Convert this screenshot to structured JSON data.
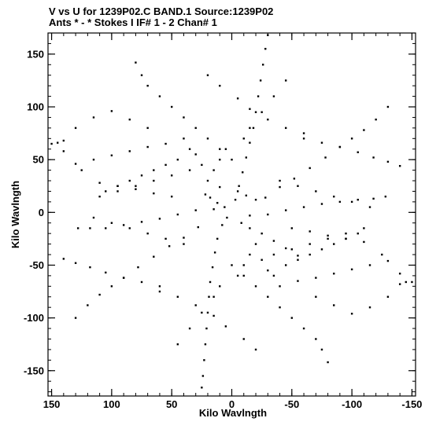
{
  "chart_data": {
    "type": "scatter",
    "title_line1": "V vs U for 1239P02.C BAND.1   Source:1239P02",
    "title_line2": "Ants * - *    Stokes I  IF# 1 - 2  Chan# 1",
    "xlabel": "Kilo Wavlngth",
    "ylabel": "Kilo Wavlngth",
    "xlim": [
      153,
      -153
    ],
    "ylim": [
      -174,
      170
    ],
    "x_ticks": [
      150,
      100,
      50,
      0,
      -50,
      -100,
      -150
    ],
    "y_ticks": [
      150,
      100,
      50,
      0,
      -50,
      -100,
      -150
    ],
    "x_minor_step": 10,
    "y_minor_step": 10,
    "grid": false,
    "point_color": "#000000",
    "description_hint": "six-armed star uv-coverage pattern, point-symmetric about origin",
    "series": [
      {
        "points": [
          [
            6,
            5
          ],
          [
            12,
            9
          ],
          [
            18,
            14
          ],
          [
            22,
            17
          ],
          [
            10,
            24
          ],
          [
            -5,
            20
          ],
          [
            -12,
            16
          ],
          [
            -20,
            12
          ],
          [
            4,
            -5
          ],
          [
            -8,
            -10
          ],
          [
            -15,
            -15
          ],
          [
            -25,
            -20
          ],
          [
            -35,
            -27
          ],
          [
            -45,
            -34
          ],
          [
            -55,
            -41
          ],
          [
            8,
            -12
          ],
          [
            12,
            -25
          ],
          [
            14,
            -38
          ],
          [
            16,
            -52
          ],
          [
            18,
            -66
          ],
          [
            19,
            -80
          ],
          [
            20,
            -95
          ],
          [
            21,
            -110
          ],
          [
            22,
            -125
          ],
          [
            23,
            -140
          ],
          [
            24,
            -155
          ],
          [
            25,
            -166
          ],
          [
            -3,
            12
          ],
          [
            -6,
            25
          ],
          [
            -9,
            38
          ],
          [
            -12,
            52
          ],
          [
            -15,
            66
          ],
          [
            -18,
            80
          ],
          [
            -20,
            95
          ],
          [
            -22,
            110
          ],
          [
            -24,
            125
          ],
          [
            -26,
            140
          ],
          [
            -28,
            155
          ],
          [
            -30,
            168
          ],
          [
            15,
            3
          ],
          [
            30,
            2
          ],
          [
            45,
            -2
          ],
          [
            60,
            -6
          ],
          [
            75,
            -9
          ],
          [
            90,
            -12
          ],
          [
            105,
            -15
          ],
          [
            118,
            -15
          ],
          [
            128,
            -15
          ],
          [
            -15,
            -3
          ],
          [
            -30,
            -2
          ],
          [
            -45,
            2
          ],
          [
            -60,
            5
          ],
          [
            -75,
            8
          ],
          [
            -90,
            10
          ],
          [
            -105,
            12
          ],
          [
            -118,
            13
          ],
          [
            -128,
            15
          ],
          [
            40,
            70
          ],
          [
            55,
            65
          ],
          [
            70,
            62
          ],
          [
            85,
            58
          ],
          [
            100,
            54
          ],
          [
            115,
            50
          ],
          [
            130,
            46
          ],
          [
            145,
            66
          ],
          [
            140,
            58
          ],
          [
            125,
            40
          ],
          [
            -40,
            -70
          ],
          [
            -55,
            -65
          ],
          [
            -70,
            -62
          ],
          [
            -85,
            -58
          ],
          [
            -100,
            -54
          ],
          [
            -115,
            -50
          ],
          [
            -130,
            -46
          ],
          [
            -145,
            -66
          ],
          [
            -140,
            -58
          ],
          [
            -125,
            -40
          ],
          [
            -60,
            70
          ],
          [
            -75,
            66
          ],
          [
            -90,
            62
          ],
          [
            -105,
            57
          ],
          [
            -118,
            52
          ],
          [
            -130,
            48
          ],
          [
            -140,
            44
          ],
          [
            60,
            -70
          ],
          [
            75,
            -66
          ],
          [
            90,
            -62
          ],
          [
            105,
            -57
          ],
          [
            118,
            -52
          ],
          [
            130,
            -48
          ],
          [
            140,
            -44
          ],
          [
            130,
            -100
          ],
          [
            120,
            -88
          ],
          [
            110,
            -78
          ],
          [
            100,
            -70
          ],
          [
            90,
            -62
          ],
          [
            78,
            -52
          ],
          [
            65,
            -42
          ],
          [
            52,
            -32
          ],
          [
            40,
            -24
          ],
          [
            28,
            -14
          ],
          [
            -130,
            100
          ],
          [
            -120,
            88
          ],
          [
            -110,
            78
          ],
          [
            -100,
            70
          ],
          [
            -90,
            62
          ],
          [
            -78,
            52
          ],
          [
            -65,
            42
          ],
          [
            -52,
            32
          ],
          [
            -40,
            24
          ],
          [
            -28,
            14
          ],
          [
            -140,
            -68
          ],
          [
            -150,
            -66
          ],
          [
            -130,
            -80
          ],
          [
            -115,
            -90
          ],
          [
            -100,
            -96
          ],
          [
            -85,
            -88
          ],
          [
            -70,
            -80
          ],
          [
            140,
            68
          ],
          [
            150,
            65
          ],
          [
            130,
            80
          ],
          [
            115,
            90
          ],
          [
            100,
            96
          ],
          [
            85,
            88
          ],
          [
            70,
            80
          ],
          [
            0,
            50
          ],
          [
            10,
            60
          ],
          [
            20,
            70
          ],
          [
            30,
            80
          ],
          [
            40,
            90
          ],
          [
            50,
            100
          ],
          [
            60,
            110
          ],
          [
            70,
            120
          ],
          [
            75,
            130
          ],
          [
            80,
            142
          ],
          [
            0,
            -50
          ],
          [
            -10,
            -60
          ],
          [
            -20,
            -70
          ],
          [
            -30,
            -80
          ],
          [
            -40,
            -90
          ],
          [
            -50,
            -100
          ],
          [
            -60,
            -110
          ],
          [
            -70,
            -120
          ],
          [
            -75,
            -130
          ],
          [
            -80,
            -142
          ],
          [
            20,
            130
          ],
          [
            10,
            120
          ],
          [
            -5,
            108
          ],
          [
            -15,
            98
          ],
          [
            -30,
            88
          ],
          [
            -45,
            80
          ],
          [
            -60,
            75
          ],
          [
            -20,
            -130
          ],
          [
            -10,
            -120
          ],
          [
            5,
            -108
          ],
          [
            15,
            -98
          ],
          [
            30,
            -88
          ],
          [
            45,
            -80
          ],
          [
            60,
            -75
          ],
          [
            35,
            40
          ],
          [
            50,
            35
          ],
          [
            65,
            30
          ],
          [
            80,
            25
          ],
          [
            95,
            20
          ],
          [
            110,
            15
          ],
          [
            -35,
            -40
          ],
          [
            -50,
            -35
          ],
          [
            -65,
            -30
          ],
          [
            -80,
            -25
          ],
          [
            -95,
            -20
          ],
          [
            -110,
            -15
          ],
          [
            25,
            45
          ],
          [
            30,
            55
          ],
          [
            35,
            60
          ],
          [
            45,
            50
          ],
          [
            55,
            45
          ],
          [
            65,
            40
          ],
          [
            75,
            35
          ],
          [
            85,
            30
          ],
          [
            95,
            25
          ],
          [
            105,
            20
          ],
          [
            -25,
            -45
          ],
          [
            -30,
            -55
          ],
          [
            -35,
            -60
          ],
          [
            -45,
            -50
          ],
          [
            -55,
            -45
          ],
          [
            -65,
            -40
          ],
          [
            -75,
            -35
          ],
          [
            -85,
            -30
          ],
          [
            -95,
            -25
          ],
          [
            -105,
            -20
          ],
          [
            -40,
            30
          ],
          [
            -55,
            25
          ],
          [
            -70,
            20
          ],
          [
            -85,
            15
          ],
          [
            -100,
            10
          ],
          [
            -115,
            5
          ],
          [
            40,
            -30
          ],
          [
            55,
            -25
          ],
          [
            70,
            -20
          ],
          [
            85,
            -15
          ],
          [
            100,
            -10
          ],
          [
            115,
            -5
          ],
          [
            -10,
            70
          ],
          [
            -15,
            80
          ],
          [
            -25,
            95
          ],
          [
            -35,
            110
          ],
          [
            -45,
            125
          ],
          [
            10,
            -70
          ],
          [
            15,
            -80
          ],
          [
            25,
            -95
          ],
          [
            35,
            -110
          ],
          [
            45,
            -125
          ],
          [
            20,
            30
          ],
          [
            15,
            40
          ],
          [
            10,
            50
          ],
          [
            5,
            60
          ],
          [
            -20,
            -30
          ],
          [
            -15,
            -40
          ],
          [
            -10,
            -50
          ],
          [
            -5,
            -60
          ],
          [
            50,
            15
          ],
          [
            65,
            18
          ],
          [
            80,
            22
          ],
          [
            95,
            25
          ],
          [
            110,
            28
          ],
          [
            -50,
            -15
          ],
          [
            -65,
            -18
          ],
          [
            -80,
            -22
          ],
          [
            -95,
            -25
          ],
          [
            -110,
            -28
          ]
        ]
      }
    ]
  }
}
